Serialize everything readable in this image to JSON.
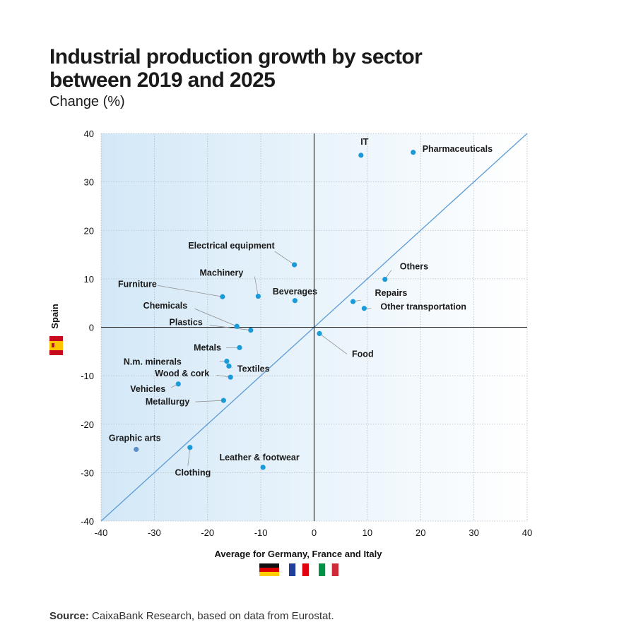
{
  "title": "Industrial production growth by sector between 2019 and 2025",
  "subtitle": "Change (%)",
  "source_label": "Source:",
  "source_text": " CaixaBank Research, based on data from Eurostat.",
  "colors": {
    "point": "#1a9ad9",
    "point_muted": "#5b8fc9",
    "diagonal": "#5b9bd5",
    "zero_line": "#222222"
  },
  "icons": {
    "x_flags": [
      "germany-flag-icon",
      "france-flag-icon",
      "italy-flag-icon"
    ],
    "y_flag": "spain-flag-icon"
  },
  "chart_data": {
    "type": "scatter",
    "title": "Industrial production growth by sector between 2019 and 2025",
    "subtitle": "Change (%)",
    "xlabel": "Average for Germany, France and Italy",
    "ylabel": "Spain",
    "xlim": [
      -40,
      40
    ],
    "ylim": [
      -40,
      40
    ],
    "xticks": [
      -40,
      -30,
      -20,
      -10,
      0,
      10,
      20,
      30,
      40
    ],
    "yticks": [
      -40,
      -30,
      -20,
      -10,
      0,
      10,
      20,
      30,
      40
    ],
    "grid": true,
    "reference_line": "y = x",
    "points": [
      {
        "label": "IT",
        "x": 8.8,
        "y": 35.5
      },
      {
        "label": "Pharmaceuticals",
        "x": 18.6,
        "y": 36.1
      },
      {
        "label": "Electrical equipment",
        "x": -3.7,
        "y": 12.9
      },
      {
        "label": "Machinery",
        "x": -10.5,
        "y": 6.4
      },
      {
        "label": "Furniture",
        "x": -17.2,
        "y": 6.3
      },
      {
        "label": "Beverages",
        "x": -3.6,
        "y": 5.5
      },
      {
        "label": "Others",
        "x": 13.3,
        "y": 9.9
      },
      {
        "label": "Repairs",
        "x": 7.3,
        "y": 5.3
      },
      {
        "label": "Other transportation",
        "x": 9.4,
        "y": 3.9
      },
      {
        "label": "Chemicals",
        "x": -14.5,
        "y": 0.2
      },
      {
        "label": "Plastics",
        "x": -11.9,
        "y": -0.6
      },
      {
        "label": "Food",
        "x": 1.0,
        "y": -1.3
      },
      {
        "label": "Metals",
        "x": -14.0,
        "y": -4.2
      },
      {
        "label": "N.m. minerals",
        "x": -16.4,
        "y": -7.0
      },
      {
        "label": "Textiles",
        "x": -16.0,
        "y": -8.0
      },
      {
        "label": "Wood & cork",
        "x": -15.7,
        "y": -10.3
      },
      {
        "label": "Vehicles",
        "x": -25.5,
        "y": -11.7
      },
      {
        "label": "Metallurgy",
        "x": -17.0,
        "y": -15.1
      },
      {
        "label": "Graphic arts",
        "x": -33.4,
        "y": -25.2
      },
      {
        "label": "Clothing",
        "x": -23.3,
        "y": -24.8
      },
      {
        "label": "Leather & footwear",
        "x": -9.6,
        "y": -28.9
      }
    ]
  }
}
